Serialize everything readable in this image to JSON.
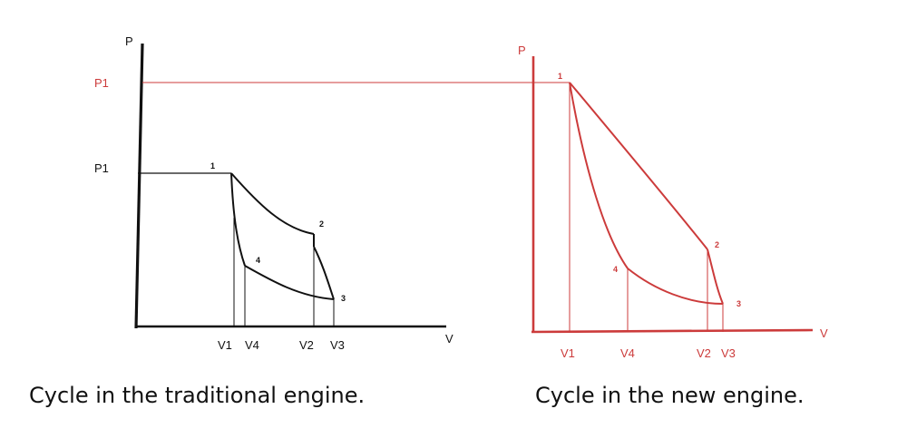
{
  "colors": {
    "traditional": "#111111",
    "new": "#cc3b3b",
    "label_red": "#cc3b3b"
  },
  "left_diagram": {
    "axis_p": "P",
    "axis_v": "V",
    "p1_high": "P1",
    "p1_low": "P1",
    "points": [
      "1",
      "2",
      "3",
      "4"
    ],
    "v_labels": [
      "V1",
      "V4",
      "V2",
      "V3"
    ],
    "caption": "Cycle in the traditional engine."
  },
  "right_diagram": {
    "axis_p": "P",
    "axis_v": "V",
    "points": [
      "1",
      "2",
      "3",
      "4"
    ],
    "v_labels": [
      "V1",
      "V4",
      "V2",
      "V3"
    ],
    "caption": "Cycle in the new engine."
  }
}
